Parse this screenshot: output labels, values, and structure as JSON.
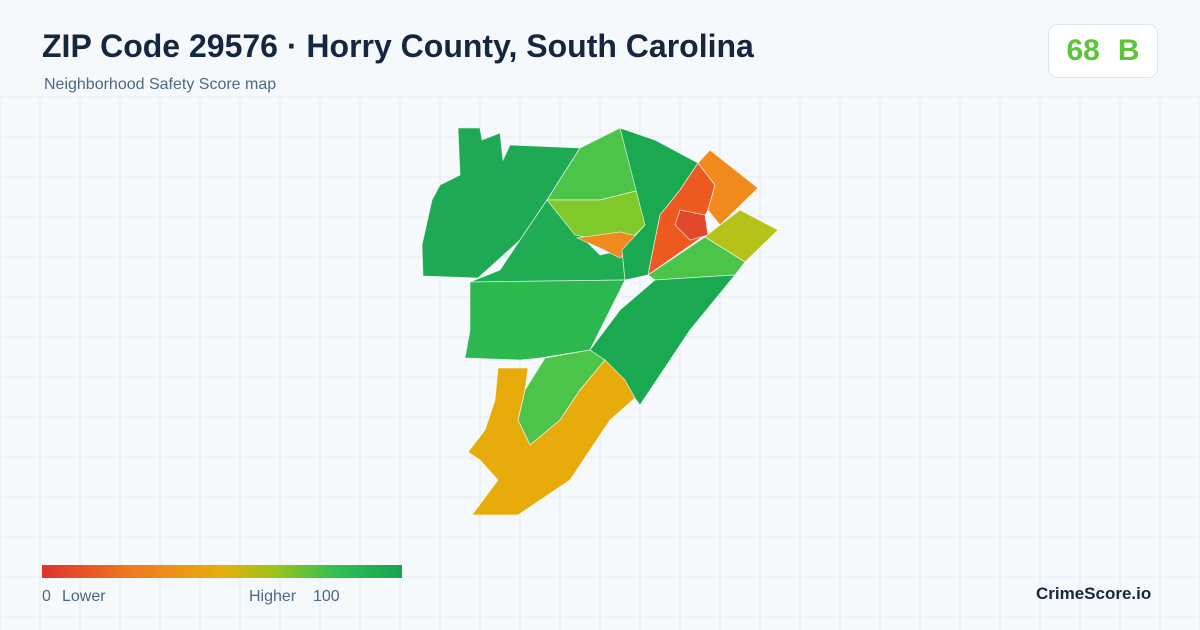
{
  "header": {
    "title": "ZIP Code 29576 · Horry County, South Carolina",
    "subtitle": "Neighborhood Safety Score map"
  },
  "score": {
    "value": 68,
    "grade": "B"
  },
  "legend": {
    "min": 0,
    "min_label": "Lower",
    "max_label": "Higher",
    "max": 100
  },
  "brand": "CrimeScore.io"
}
